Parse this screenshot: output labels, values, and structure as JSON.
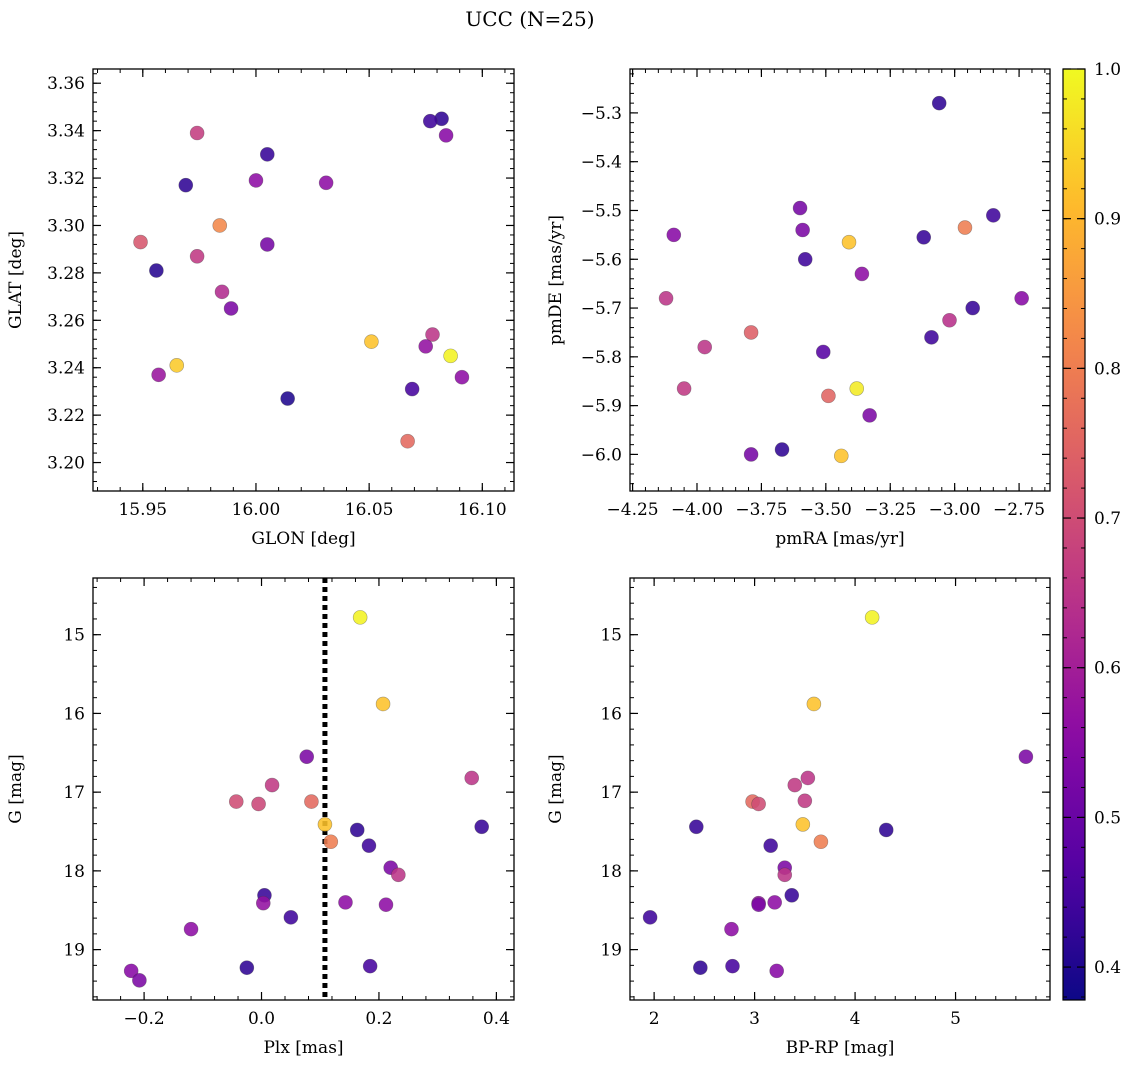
{
  "figure": {
    "title": "UCC (N=25)"
  },
  "colorbar": {
    "range": [
      0.378,
      1.0
    ],
    "ticks": [
      0.4,
      0.5,
      0.6,
      0.7,
      0.8,
      0.9,
      1.0
    ],
    "tick_labels": [
      "0.4",
      "0.5",
      "0.6",
      "0.7",
      "0.8",
      "0.9",
      "1.0"
    ],
    "colormap": "plasma"
  },
  "chart_data": [
    {
      "type": "scatter",
      "xlabel": "GLON [deg]",
      "ylabel": "GLAT [deg]",
      "xlim": [
        15.928,
        16.114
      ],
      "ylim": [
        3.188,
        3.366
      ],
      "xticks": [
        15.95,
        16.0,
        16.05,
        16.1
      ],
      "xtick_labels": [
        "15.95",
        "16.00",
        "16.05",
        "16.10"
      ],
      "yticks": [
        3.2,
        3.22,
        3.24,
        3.26,
        3.28,
        3.3,
        3.32,
        3.34,
        3.36
      ],
      "ytick_labels": [
        "3.20",
        "3.22",
        "3.24",
        "3.26",
        "3.28",
        "3.30",
        "3.32",
        "3.34",
        "3.36"
      ],
      "points": [
        {
          "x": 16.082,
          "y": 3.345,
          "c": 0.42
        },
        {
          "x": 16.077,
          "y": 3.344,
          "c": 0.44
        },
        {
          "x": 16.084,
          "y": 3.338,
          "c": 0.55
        },
        {
          "x": 15.974,
          "y": 3.339,
          "c": 0.67
        },
        {
          "x": 16.005,
          "y": 3.33,
          "c": 0.43
        },
        {
          "x": 16.031,
          "y": 3.318,
          "c": 0.56
        },
        {
          "x": 16.0,
          "y": 3.319,
          "c": 0.56
        },
        {
          "x": 15.969,
          "y": 3.317,
          "c": 0.42
        },
        {
          "x": 15.984,
          "y": 3.3,
          "c": 0.82
        },
        {
          "x": 15.949,
          "y": 3.293,
          "c": 0.72
        },
        {
          "x": 16.005,
          "y": 3.292,
          "c": 0.52
        },
        {
          "x": 15.974,
          "y": 3.287,
          "c": 0.66
        },
        {
          "x": 15.956,
          "y": 3.281,
          "c": 0.41
        },
        {
          "x": 15.985,
          "y": 3.272,
          "c": 0.63
        },
        {
          "x": 15.989,
          "y": 3.265,
          "c": 0.53
        },
        {
          "x": 16.078,
          "y": 3.254,
          "c": 0.65
        },
        {
          "x": 16.051,
          "y": 3.251,
          "c": 0.92
        },
        {
          "x": 16.075,
          "y": 3.249,
          "c": 0.57
        },
        {
          "x": 16.086,
          "y": 3.245,
          "c": 0.99
        },
        {
          "x": 15.965,
          "y": 3.241,
          "c": 0.93
        },
        {
          "x": 15.957,
          "y": 3.237,
          "c": 0.58
        },
        {
          "x": 16.091,
          "y": 3.236,
          "c": 0.56
        },
        {
          "x": 16.069,
          "y": 3.231,
          "c": 0.45
        },
        {
          "x": 16.014,
          "y": 3.227,
          "c": 0.4
        },
        {
          "x": 16.067,
          "y": 3.209,
          "c": 0.76
        }
      ]
    },
    {
      "type": "scatter",
      "xlabel": "pmRA [mas/yr]",
      "ylabel": "pmDE [mas/yr]",
      "xlim": [
        -4.26,
        -2.63
      ],
      "ylim": [
        -6.075,
        -5.21
      ],
      "xticks": [
        -4.25,
        -4.0,
        -3.75,
        -3.5,
        -3.25,
        -3.0,
        -2.75
      ],
      "xtick_labels": [
        "−4.25",
        "−4.00",
        "−3.75",
        "−3.50",
        "−3.25",
        "−3.00",
        "−2.75"
      ],
      "yticks": [
        -6.0,
        -5.9,
        -5.8,
        -5.7,
        -5.6,
        -5.5,
        -5.4,
        -5.3
      ],
      "ytick_labels": [
        "−6.0",
        "−5.9",
        "−5.8",
        "−5.7",
        "−5.6",
        "−5.5",
        "−5.4",
        "−5.3"
      ],
      "points": [
        {
          "x": -3.06,
          "y": -5.28,
          "c": 0.42
        },
        {
          "x": -4.09,
          "y": -5.55,
          "c": 0.55
        },
        {
          "x": -3.6,
          "y": -5.495,
          "c": 0.52
        },
        {
          "x": -3.59,
          "y": -5.54,
          "c": 0.53
        },
        {
          "x": -3.58,
          "y": -5.6,
          "c": 0.44
        },
        {
          "x": -3.41,
          "y": -5.565,
          "c": 0.92
        },
        {
          "x": -3.12,
          "y": -5.555,
          "c": 0.43
        },
        {
          "x": -2.85,
          "y": -5.51,
          "c": 0.44
        },
        {
          "x": -2.96,
          "y": -5.535,
          "c": 0.8
        },
        {
          "x": -3.36,
          "y": -5.63,
          "c": 0.56
        },
        {
          "x": -4.12,
          "y": -5.68,
          "c": 0.65
        },
        {
          "x": -2.74,
          "y": -5.68,
          "c": 0.55
        },
        {
          "x": -2.93,
          "y": -5.7,
          "c": 0.43
        },
        {
          "x": -3.02,
          "y": -5.725,
          "c": 0.64
        },
        {
          "x": -3.79,
          "y": -5.75,
          "c": 0.74
        },
        {
          "x": -3.97,
          "y": -5.78,
          "c": 0.65
        },
        {
          "x": -3.09,
          "y": -5.76,
          "c": 0.44
        },
        {
          "x": -3.51,
          "y": -5.79,
          "c": 0.47
        },
        {
          "x": -4.05,
          "y": -5.865,
          "c": 0.66
        },
        {
          "x": -3.38,
          "y": -5.865,
          "c": 0.98
        },
        {
          "x": -3.49,
          "y": -5.88,
          "c": 0.75
        },
        {
          "x": -3.33,
          "y": -5.92,
          "c": 0.53
        },
        {
          "x": -3.67,
          "y": -5.99,
          "c": 0.42
        },
        {
          "x": -3.79,
          "y": -6.0,
          "c": 0.52
        },
        {
          "x": -3.44,
          "y": -6.003,
          "c": 0.92
        }
      ]
    },
    {
      "type": "scatter",
      "xlabel": "Plx [mas]",
      "ylabel": "G [mag]",
      "xlim": [
        -0.287,
        0.43
      ],
      "ylim": [
        19.64,
        14.28
      ],
      "y_inverted": true,
      "xticks": [
        -0.2,
        0.0,
        0.2,
        0.4
      ],
      "xtick_labels": [
        "−0.2",
        "0.0",
        "0.2",
        "0.4"
      ],
      "yticks": [
        15,
        16,
        17,
        18,
        19
      ],
      "ytick_labels": [
        "15",
        "16",
        "17",
        "18",
        "19"
      ],
      "vline": {
        "x": 0.108,
        "style": "dotted"
      },
      "points": [
        {
          "x": 0.168,
          "y": 14.78,
          "c": 0.99
        },
        {
          "x": 0.207,
          "y": 15.88,
          "c": 0.92
        },
        {
          "x": 0.077,
          "y": 16.55,
          "c": 0.53
        },
        {
          "x": 0.358,
          "y": 16.82,
          "c": 0.65
        },
        {
          "x": 0.018,
          "y": 16.91,
          "c": 0.66
        },
        {
          "x": -0.043,
          "y": 17.12,
          "c": 0.7
        },
        {
          "x": -0.005,
          "y": 17.15,
          "c": 0.69
        },
        {
          "x": 0.085,
          "y": 17.12,
          "c": 0.76
        },
        {
          "x": 0.108,
          "y": 17.41,
          "c": 0.92
        },
        {
          "x": 0.375,
          "y": 17.44,
          "c": 0.43
        },
        {
          "x": 0.163,
          "y": 17.48,
          "c": 0.42
        },
        {
          "x": 0.118,
          "y": 17.63,
          "c": 0.8
        },
        {
          "x": 0.183,
          "y": 17.68,
          "c": 0.44
        },
        {
          "x": 0.22,
          "y": 17.96,
          "c": 0.53
        },
        {
          "x": 0.233,
          "y": 18.05,
          "c": 0.65
        },
        {
          "x": 0.005,
          "y": 18.31,
          "c": 0.43
        },
        {
          "x": 0.003,
          "y": 18.41,
          "c": 0.57
        },
        {
          "x": 0.143,
          "y": 18.4,
          "c": 0.56
        },
        {
          "x": 0.212,
          "y": 18.43,
          "c": 0.56
        },
        {
          "x": 0.05,
          "y": 18.59,
          "c": 0.44
        },
        {
          "x": -0.12,
          "y": 18.74,
          "c": 0.56
        },
        {
          "x": -0.025,
          "y": 19.23,
          "c": 0.42
        },
        {
          "x": 0.185,
          "y": 19.21,
          "c": 0.45
        },
        {
          "x": -0.222,
          "y": 19.27,
          "c": 0.55
        },
        {
          "x": -0.208,
          "y": 19.39,
          "c": 0.53
        }
      ]
    },
    {
      "type": "scatter",
      "xlabel": "BP-RP [mag]",
      "ylabel": "G [mag]",
      "xlim": [
        1.76,
        5.94
      ],
      "ylim": [
        19.64,
        14.28
      ],
      "y_inverted": true,
      "xticks": [
        2,
        3,
        4,
        5
      ],
      "xtick_labels": [
        "2",
        "3",
        "4",
        "5"
      ],
      "yticks": [
        15,
        16,
        17,
        18,
        19
      ],
      "ytick_labels": [
        "15",
        "16",
        "17",
        "18",
        "19"
      ],
      "points": [
        {
          "x": 4.17,
          "y": 14.78,
          "c": 0.99
        },
        {
          "x": 3.59,
          "y": 15.88,
          "c": 0.92
        },
        {
          "x": 5.7,
          "y": 16.55,
          "c": 0.53
        },
        {
          "x": 3.53,
          "y": 16.82,
          "c": 0.65
        },
        {
          "x": 3.4,
          "y": 16.91,
          "c": 0.66
        },
        {
          "x": 2.98,
          "y": 17.12,
          "c": 0.76
        },
        {
          "x": 3.04,
          "y": 17.15,
          "c": 0.7
        },
        {
          "x": 3.5,
          "y": 17.11,
          "c": 0.66
        },
        {
          "x": 3.48,
          "y": 17.41,
          "c": 0.92
        },
        {
          "x": 2.42,
          "y": 17.44,
          "c": 0.43
        },
        {
          "x": 4.31,
          "y": 17.48,
          "c": 0.42
        },
        {
          "x": 3.66,
          "y": 17.63,
          "c": 0.8
        },
        {
          "x": 3.16,
          "y": 17.68,
          "c": 0.44
        },
        {
          "x": 3.3,
          "y": 17.96,
          "c": 0.53
        },
        {
          "x": 3.3,
          "y": 18.05,
          "c": 0.65
        },
        {
          "x": 3.37,
          "y": 18.31,
          "c": 0.43
        },
        {
          "x": 3.04,
          "y": 18.41,
          "c": 0.57
        },
        {
          "x": 3.04,
          "y": 18.43,
          "c": 0.53
        },
        {
          "x": 3.2,
          "y": 18.4,
          "c": 0.56
        },
        {
          "x": 1.96,
          "y": 18.59,
          "c": 0.44
        },
        {
          "x": 2.77,
          "y": 18.74,
          "c": 0.56
        },
        {
          "x": 2.46,
          "y": 19.23,
          "c": 0.42
        },
        {
          "x": 2.78,
          "y": 19.21,
          "c": 0.45
        },
        {
          "x": 3.22,
          "y": 19.27,
          "c": 0.55
        }
      ]
    }
  ]
}
